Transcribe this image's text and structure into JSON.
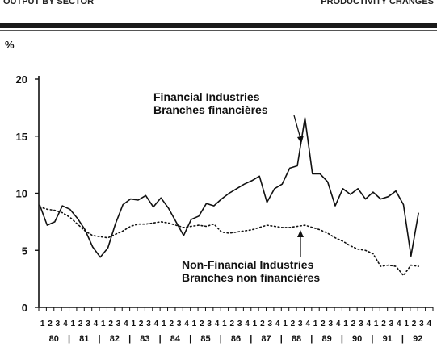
{
  "header": {
    "left_text": "OUTPUT BY SECTOR",
    "right_text": "PRODUCTIVITY CHANGES"
  },
  "chart_data": {
    "type": "line",
    "title": "",
    "ylabel": "%",
    "xlabel": "",
    "ylim": [
      0,
      20
    ],
    "yticks": [
      0,
      5,
      10,
      15,
      20
    ],
    "grid": false,
    "quarter_labels": [
      "1",
      "2",
      "3",
      "4"
    ],
    "years": [
      "80",
      "81",
      "82",
      "83",
      "84",
      "85",
      "86",
      "87",
      "88",
      "89",
      "90",
      "91",
      "92"
    ],
    "series": [
      {
        "name": "Financial Industries Branches financières",
        "style": "solid",
        "values": [
          9.0,
          7.2,
          7.5,
          8.9,
          8.6,
          7.8,
          6.8,
          5.3,
          4.4,
          5.2,
          7.3,
          9.0,
          9.5,
          9.4,
          9.8,
          8.8,
          9.6,
          8.7,
          7.5,
          6.3,
          7.7,
          8.0,
          9.1,
          8.9,
          9.5,
          10.0,
          10.4,
          10.8,
          11.1,
          11.5,
          9.2,
          10.4,
          10.8,
          12.2,
          12.4,
          16.6,
          11.7,
          11.7,
          11.0,
          8.9,
          10.4,
          9.9,
          10.4,
          9.5,
          10.1,
          9.5,
          9.7,
          10.2,
          9.0,
          4.5,
          8.3
        ]
      },
      {
        "name": "Non-Financial Industries Branches non financières",
        "style": "dotted",
        "values": [
          8.8,
          8.6,
          8.5,
          8.3,
          7.9,
          7.3,
          6.7,
          6.3,
          6.2,
          6.1,
          6.4,
          6.7,
          7.1,
          7.3,
          7.3,
          7.4,
          7.5,
          7.4,
          7.2,
          7.0,
          7.1,
          7.2,
          7.1,
          7.3,
          6.6,
          6.5,
          6.6,
          6.7,
          6.8,
          7.0,
          7.2,
          7.1,
          7.0,
          7.0,
          7.1,
          7.2,
          7.0,
          6.8,
          6.5,
          6.1,
          5.8,
          5.4,
          5.1,
          5.0,
          4.7,
          3.6,
          3.7,
          3.6,
          2.8,
          3.7,
          3.6
        ]
      }
    ],
    "annotations": [
      {
        "lines": [
          "Financial Industries",
          "Branches financières"
        ]
      },
      {
        "lines": [
          "Non-Financial Industries",
          "Branches non financières"
        ]
      }
    ]
  }
}
